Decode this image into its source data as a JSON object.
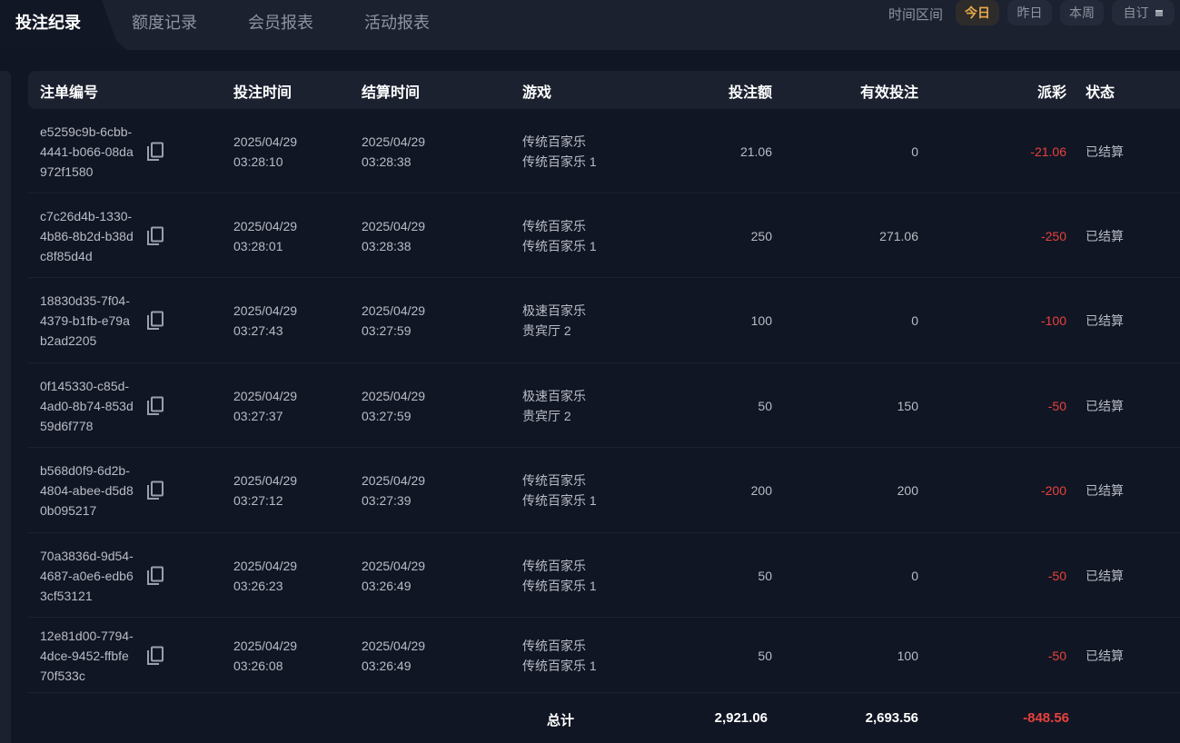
{
  "tabs": [
    {
      "label": "投注纪录",
      "active": true
    },
    {
      "label": "额度记录"
    },
    {
      "label": "会员报表"
    },
    {
      "label": "活动报表"
    }
  ],
  "time_range": {
    "label": "时间区间",
    "options": [
      {
        "label": "今日",
        "active": true
      },
      {
        "label": "昨日"
      },
      {
        "label": "本周"
      },
      {
        "label": "自订",
        "icon": "calendar-icon"
      }
    ]
  },
  "table": {
    "columns": [
      "注单编号",
      "投注时间",
      "结算时间",
      "游戏",
      "投注额",
      "有效投注",
      "派彩",
      "状态"
    ],
    "rows": [
      {
        "id": "e5259c9b-6cbb-4441-b066-08da972f1580",
        "bet_date": "2025/04/29",
        "bet_time": "03:28:10",
        "settle_date": "2025/04/29",
        "settle_time": "03:28:38",
        "game": "传统百家乐",
        "table": "传统百家乐 1",
        "amount": "21.06",
        "valid": "0",
        "payout": "-21.06",
        "status": "已结算"
      },
      {
        "id": "c7c26d4b-1330-4b86-8b2d-b38dc8f85d4d",
        "bet_date": "2025/04/29",
        "bet_time": "03:28:01",
        "settle_date": "2025/04/29",
        "settle_time": "03:28:38",
        "game": "传统百家乐",
        "table": "传统百家乐 1",
        "amount": "250",
        "valid": "271.06",
        "payout": "-250",
        "status": "已结算"
      },
      {
        "id": "18830d35-7f04-4379-b1fb-e79ab2ad2205",
        "bet_date": "2025/04/29",
        "bet_time": "03:27:43",
        "settle_date": "2025/04/29",
        "settle_time": "03:27:59",
        "game": "极速百家乐",
        "table": "贵宾厅 2",
        "amount": "100",
        "valid": "0",
        "payout": "-100",
        "status": "已结算"
      },
      {
        "id": "0f145330-c85d-4ad0-8b74-853d59d6f778",
        "bet_date": "2025/04/29",
        "bet_time": "03:27:37",
        "settle_date": "2025/04/29",
        "settle_time": "03:27:59",
        "game": "极速百家乐",
        "table": "贵宾厅 2",
        "amount": "50",
        "valid": "150",
        "payout": "-50",
        "status": "已结算"
      },
      {
        "id": "b568d0f9-6d2b-4804-abee-d5d80b095217",
        "bet_date": "2025/04/29",
        "bet_time": "03:27:12",
        "settle_date": "2025/04/29",
        "settle_time": "03:27:39",
        "game": "传统百家乐",
        "table": "传统百家乐 1",
        "amount": "200",
        "valid": "200",
        "payout": "-200",
        "status": "已结算"
      },
      {
        "id": "70a3836d-9d54-4687-a0e6-edb63cf53121",
        "bet_date": "2025/04/29",
        "bet_time": "03:26:23",
        "settle_date": "2025/04/29",
        "settle_time": "03:26:49",
        "game": "传统百家乐",
        "table": "传统百家乐 1",
        "amount": "50",
        "valid": "0",
        "payout": "-50",
        "status": "已结算"
      },
      {
        "id": "12e81d00-7794-4dce-9452-ffbfe70f533c",
        "bet_date": "2025/04/29",
        "bet_time": "03:26:08",
        "settle_date": "2025/04/29",
        "settle_time": "03:26:49",
        "game": "传统百家乐",
        "table": "传统百家乐 1",
        "amount": "50",
        "valid": "100",
        "payout": "-50",
        "status": "已结算"
      }
    ],
    "total": {
      "label": "总计",
      "amount": "2,921.06",
      "valid": "2,693.56",
      "payout": "-848.56"
    }
  },
  "colors": {
    "accent": "#e8a94c",
    "negative": "#e8413c",
    "background": "#111624",
    "panel": "#1c2130"
  }
}
